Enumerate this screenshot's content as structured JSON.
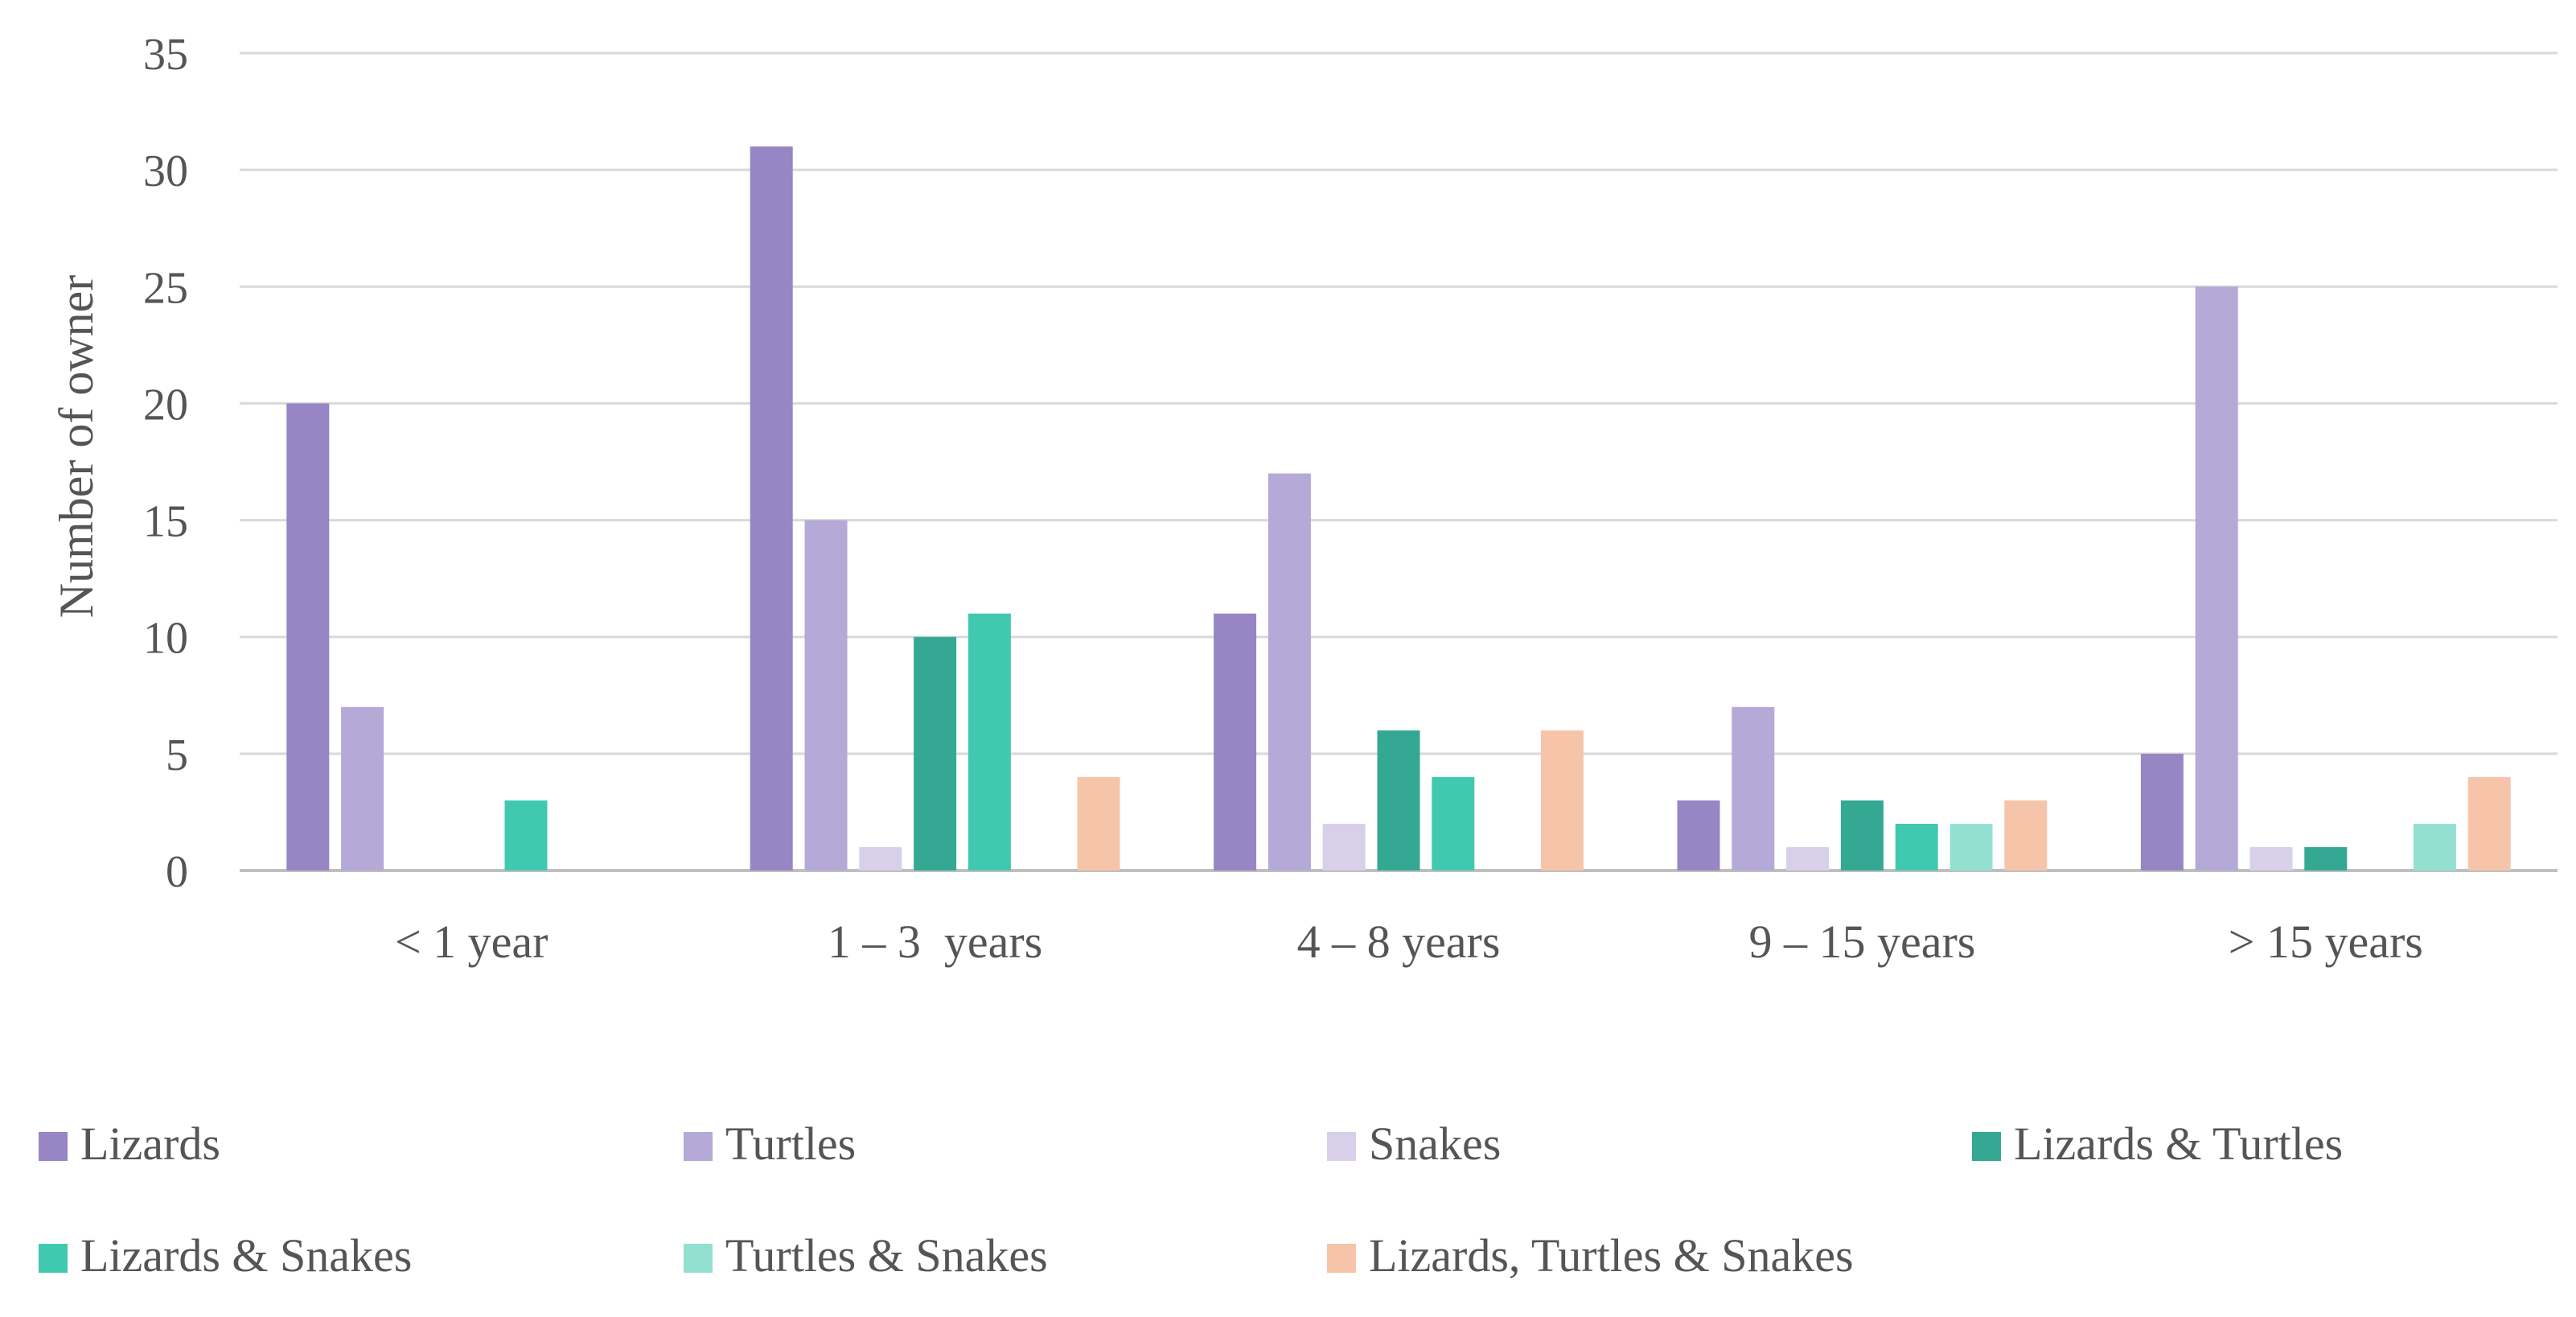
{
  "chart_data": {
    "type": "bar",
    "title": "",
    "xlabel": "",
    "ylabel": "Number of owner",
    "ylim": [
      0,
      35
    ],
    "yticks": [
      0,
      5,
      10,
      15,
      20,
      25,
      30,
      35
    ],
    "grid": true,
    "legend_position": "bottom",
    "categories": [
      "< 1 year",
      "1 – 3  years",
      "4 – 8 years",
      "9 – 15 years",
      "> 15 years"
    ],
    "series": [
      {
        "name": "Lizards",
        "color": "#9885C3",
        "values": [
          20,
          31,
          11,
          3,
          5
        ]
      },
      {
        "name": "Turtles",
        "color": "#B4A9D7",
        "values": [
          7,
          15,
          17,
          7,
          25
        ]
      },
      {
        "name": "Snakes",
        "color": "#D8D0EA",
        "values": [
          0,
          1,
          2,
          1,
          1
        ]
      },
      {
        "name": "Lizards & Turtles",
        "color": "#34A893",
        "values": [
          0,
          10,
          6,
          3,
          1
        ]
      },
      {
        "name": "Lizards & Snakes",
        "color": "#40C9AE",
        "values": [
          3,
          11,
          4,
          2,
          0
        ]
      },
      {
        "name": "Turtles & Snakes",
        "color": "#94E0D0",
        "values": [
          0,
          0,
          0,
          2,
          2
        ]
      },
      {
        "name": "Lizards, Turtles & Snakes",
        "color": "#F6C5A9",
        "values": [
          0,
          4,
          6,
          3,
          4
        ]
      }
    ]
  }
}
